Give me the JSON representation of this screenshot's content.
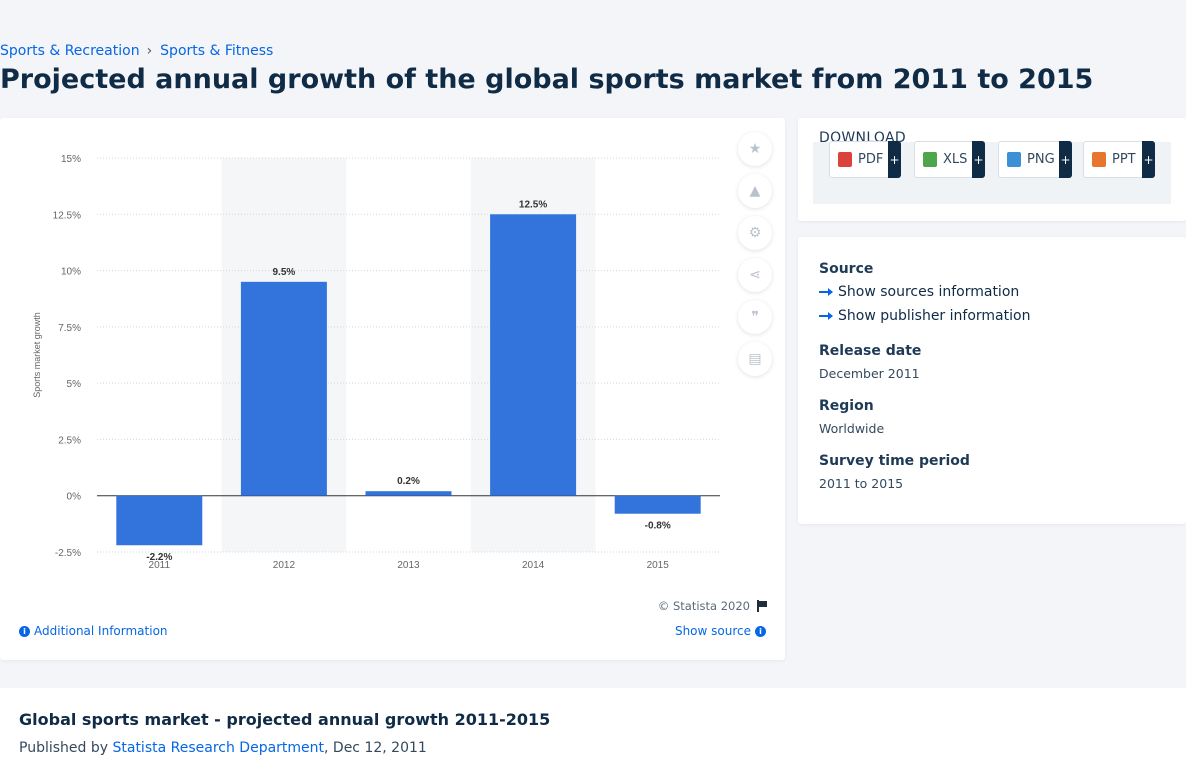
{
  "breadcrumb": {
    "items": [
      "Sports & Recreation",
      "Sports & Fitness"
    ],
    "separator": "›"
  },
  "page_title": "Projected annual growth of the global sports market from 2011 to 2015",
  "chart_data": {
    "type": "bar",
    "categories": [
      "2011",
      "2012",
      "2013",
      "2014",
      "2015"
    ],
    "values": [
      -2.2,
      9.5,
      0.2,
      12.5,
      -0.8
    ],
    "data_labels": [
      "-2.2%",
      "9.5%",
      "0.2%",
      "12.5%",
      "-0.8%"
    ],
    "ylabel": "Sports market growth",
    "ylim": [
      -2.5,
      15
    ],
    "yticks": [
      "-2.5%",
      "0%",
      "2.5%",
      "5%",
      "7.5%",
      "10%",
      "12.5%",
      "15%"
    ],
    "ytick_values": [
      -2.5,
      0,
      2.5,
      5,
      7.5,
      10,
      12.5,
      15
    ],
    "grid": true,
    "bar_color": "#3273dc"
  },
  "chart_footer": {
    "copyright": "© Statista 2020",
    "additional_info": "Additional Information",
    "show_source": "Show source"
  },
  "tools": [
    "star-icon",
    "bell-icon",
    "gear-icon",
    "share-icon",
    "quote-icon",
    "print-icon"
  ],
  "download": {
    "title": "DOWNLOAD",
    "buttons": [
      {
        "label": "PDF",
        "color": "#d9433a"
      },
      {
        "label": "XLS",
        "color": "#4ca64c"
      },
      {
        "label": "PNG",
        "color": "#3d8fd6"
      },
      {
        "label": "PPT",
        "color": "#e8752e"
      }
    ],
    "plus": "+"
  },
  "meta": {
    "source_label": "Source",
    "show_sources": "Show sources information",
    "show_publisher": "Show publisher information",
    "release_label": "Release date",
    "release_value": "December 2011",
    "region_label": "Region",
    "region_value": "Worldwide",
    "period_label": "Survey time period",
    "period_value": "2011 to 2015"
  },
  "bottom": {
    "title": "Global sports market - projected annual growth 2011-2015",
    "published_prefix": "Published by",
    "publisher": "Statista Research Department",
    "date": ", Dec 12, 2011"
  }
}
